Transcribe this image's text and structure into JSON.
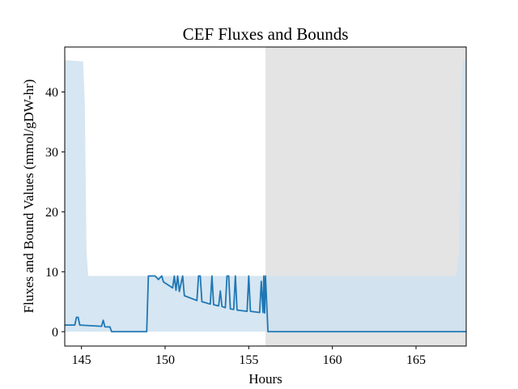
{
  "chart_data": {
    "type": "line",
    "title": "CEF Fluxes and Bounds",
    "xlabel": "Hours",
    "ylabel": "Fluxes and Bound Values (mmol/gDW-hr)",
    "xlim": [
      144,
      168
    ],
    "ylim": [
      -2.4,
      47.5
    ],
    "xticks": [
      145,
      150,
      155,
      160,
      165
    ],
    "yticks": [
      0,
      10,
      20,
      30,
      40
    ],
    "grid": false,
    "legend": "none",
    "colors": {
      "line": "#1f77b4",
      "bound_fill": "#cfe2f0",
      "shaded_region": "#e4e4e4",
      "axes": "#000000"
    },
    "shaded_region": {
      "x_start": 156,
      "x_end": 168
    },
    "bounds": {
      "upper": [
        [
          144,
          45.3
        ],
        [
          145.1,
          45.1
        ],
        [
          145.2,
          38
        ],
        [
          145.3,
          13.5
        ],
        [
          145.4,
          9.3
        ],
        [
          167.4,
          9.3
        ],
        [
          167.6,
          14
        ],
        [
          167.7,
          40
        ],
        [
          167.8,
          45.3
        ],
        [
          168,
          45.3
        ]
      ],
      "lower": [
        [
          144,
          0
        ],
        [
          168,
          0
        ]
      ]
    },
    "series": [
      {
        "values": [
          [
            144,
            1.1
          ],
          [
            144.6,
            1.1
          ],
          [
            144.7,
            2.4
          ],
          [
            144.8,
            2.4
          ],
          [
            144.9,
            1.1
          ],
          [
            146.2,
            0.9
          ],
          [
            146.3,
            1.9
          ],
          [
            146.4,
            0.8
          ],
          [
            146.7,
            0.8
          ],
          [
            146.8,
            0.0
          ],
          [
            148.9,
            0.0
          ],
          [
            149.0,
            9.3
          ],
          [
            149.4,
            9.3
          ],
          [
            149.6,
            8.7
          ],
          [
            149.8,
            9.3
          ],
          [
            149.9,
            8.3
          ],
          [
            150.45,
            7.3
          ],
          [
            150.55,
            9.3
          ],
          [
            150.65,
            6.9
          ],
          [
            150.75,
            9.3
          ],
          [
            150.85,
            6.7
          ],
          [
            151.05,
            9.3
          ],
          [
            151.15,
            6.0
          ],
          [
            151.9,
            5.2
          ],
          [
            152.0,
            9.3
          ],
          [
            152.1,
            9.3
          ],
          [
            152.2,
            5.0
          ],
          [
            152.7,
            4.6
          ],
          [
            152.8,
            9.3
          ],
          [
            152.9,
            4.5
          ],
          [
            153.2,
            4.3
          ],
          [
            153.3,
            6.8
          ],
          [
            153.4,
            4.2
          ],
          [
            153.6,
            4.0
          ],
          [
            153.7,
            9.3
          ],
          [
            153.8,
            9.3
          ],
          [
            153.9,
            3.8
          ],
          [
            154.1,
            3.7
          ],
          [
            154.2,
            9.3
          ],
          [
            154.3,
            3.6
          ],
          [
            154.9,
            3.4
          ],
          [
            155.0,
            9.3
          ],
          [
            155.1,
            3.4
          ],
          [
            155.65,
            3.2
          ],
          [
            155.75,
            8.4
          ],
          [
            155.85,
            3.2
          ],
          [
            155.9,
            9.3
          ],
          [
            155.95,
            3.1
          ],
          [
            156.0,
            9.3
          ],
          [
            156.15,
            0.0
          ],
          [
            168,
            0.0
          ]
        ]
      }
    ]
  }
}
